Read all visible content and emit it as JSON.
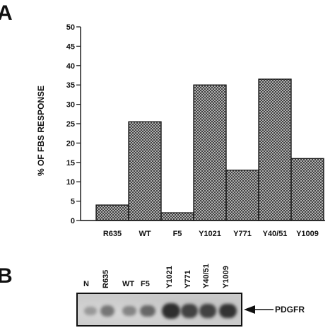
{
  "panels": {
    "a_label": "A",
    "b_label": "B"
  },
  "chart_data": {
    "type": "bar",
    "categories": [
      "R635",
      "WT",
      "F5",
      "Y1021",
      "Y771",
      "Y40/51",
      "Y1009"
    ],
    "values": [
      4,
      25.5,
      2,
      35,
      13,
      36.5,
      16
    ],
    "title": "",
    "xlabel": "",
    "ylabel": "% OF FBS RESPONSE",
    "ylim": [
      0,
      50
    ],
    "yticks": [
      0,
      5,
      10,
      15,
      20,
      25,
      30,
      35,
      40,
      45,
      50
    ],
    "grid": false,
    "bar_fill": "crosshatch",
    "colors": {
      "bar_fill": "#8a8a8a",
      "bar_edge": "#111111",
      "axis": "#111111"
    }
  },
  "blot": {
    "lanes": [
      "N",
      "R635",
      "WT",
      "F5",
      "Y1021",
      "Y771",
      "Y40/51",
      "Y1009"
    ],
    "band_intensity": [
      0.2,
      0.45,
      0.35,
      0.55,
      0.95,
      0.8,
      0.8,
      0.9
    ],
    "protein_label": "PDGFR",
    "arrow_icon": "left-arrow-icon"
  }
}
